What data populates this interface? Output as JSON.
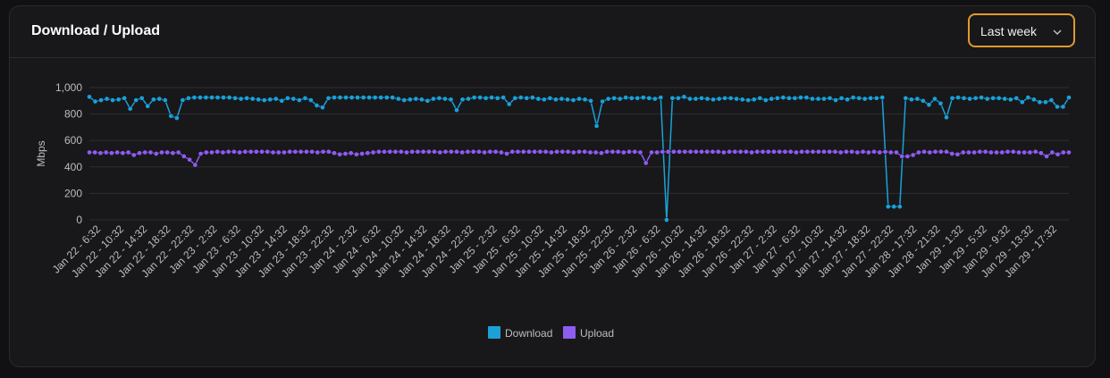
{
  "card": {
    "title": "Download / Upload",
    "range_selected": "Last week"
  },
  "colors": {
    "download": "#1ba1d8",
    "upload": "#8f5cf0",
    "accent": "#e09a2a"
  },
  "icons": {
    "range_dropdown": "chevron-down-icon"
  },
  "chart_data": {
    "type": "line",
    "title": "",
    "ylabel": "Mbps",
    "xlabel": "",
    "ylim": [
      0,
      1000
    ],
    "yticks": [
      0,
      200,
      400,
      600,
      800,
      1000
    ],
    "ytick_labels": [
      "0",
      "200",
      "400",
      "600",
      "800",
      "1,000"
    ],
    "grid": true,
    "legend_position": "bottom-center",
    "x_tick_labels": [
      "Jan 22 - 6:32",
      "Jan 22 - 10:32",
      "Jan 22 - 14:32",
      "Jan 22 - 18:32",
      "Jan 22 - 22:32",
      "Jan 23 - 2:32",
      "Jan 23 - 6:32",
      "Jan 23 - 10:32",
      "Jan 23 - 14:32",
      "Jan 23 - 18:32",
      "Jan 23 - 22:32",
      "Jan 24 - 2:32",
      "Jan 24 - 6:32",
      "Jan 24 - 10:32",
      "Jan 24 - 14:32",
      "Jan 24 - 18:32",
      "Jan 24 - 22:32",
      "Jan 25 - 2:32",
      "Jan 25 - 6:32",
      "Jan 25 - 10:32",
      "Jan 25 - 14:32",
      "Jan 25 - 18:32",
      "Jan 25 - 22:32",
      "Jan 26 - 2:32",
      "Jan 26 - 6:32",
      "Jan 26 - 10:32",
      "Jan 26 - 14:32",
      "Jan 26 - 18:32",
      "Jan 26 - 22:32",
      "Jan 27 - 2:32",
      "Jan 27 - 6:32",
      "Jan 27 - 10:32",
      "Jan 27 - 14:32",
      "Jan 27 - 18:32",
      "Jan 27 - 22:32",
      "Jan 28 - 17:32",
      "Jan 28 - 21:32",
      "Jan 29 - 1:32",
      "Jan 29 - 5:32",
      "Jan 29 - 9:32",
      "Jan 29 - 13:32",
      "Jan 29 - 17:32"
    ],
    "series": [
      {
        "name": "Download",
        "values": [
          930,
          895,
          905,
          915,
          905,
          910,
          920,
          840,
          905,
          920,
          860,
          910,
          915,
          905,
          785,
          770,
          905,
          920,
          925,
          925,
          925,
          925,
          925,
          925,
          925,
          920,
          915,
          920,
          915,
          910,
          905,
          910,
          915,
          900,
          920,
          915,
          905,
          920,
          905,
          865,
          850,
          920,
          925,
          925,
          925,
          925,
          925,
          925,
          925,
          925,
          925,
          925,
          925,
          915,
          905,
          910,
          915,
          910,
          900,
          915,
          920,
          915,
          910,
          830,
          910,
          915,
          925,
          925,
          920,
          925,
          920,
          925,
          875,
          920,
          925,
          920,
          925,
          915,
          910,
          920,
          910,
          915,
          910,
          905,
          915,
          910,
          900,
          710,
          895,
          915,
          920,
          915,
          925,
          920,
          920,
          925,
          920,
          915,
          925,
          0,
          920,
          920,
          930,
          915,
          915,
          920,
          915,
          910,
          915,
          920,
          920,
          915,
          910,
          905,
          910,
          920,
          905,
          915,
          920,
          925,
          920,
          920,
          925,
          925,
          915,
          915,
          915,
          920,
          905,
          920,
          910,
          925,
          920,
          915,
          920,
          920,
          925,
          100,
          100,
          100,
          920,
          910,
          915,
          900,
          870,
          915,
          880,
          775,
          920,
          925,
          920,
          915,
          920,
          925,
          915,
          920,
          920,
          915,
          910,
          920,
          890,
          925,
          910,
          890,
          890,
          905,
          855,
          855,
          925
        ],
        "download_note_hidden": ""
      },
      {
        "name": "Upload",
        "values": [
          510,
          510,
          505,
          510,
          505,
          510,
          505,
          510,
          490,
          505,
          510,
          510,
          500,
          510,
          510,
          505,
          510,
          480,
          455,
          415,
          500,
          510,
          510,
          515,
          510,
          515,
          515,
          510,
          515,
          515,
          515,
          515,
          515,
          510,
          510,
          510,
          515,
          515,
          515,
          515,
          515,
          510,
          515,
          515,
          505,
          495,
          500,
          505,
          495,
          500,
          505,
          510,
          515,
          515,
          515,
          515,
          515,
          510,
          515,
          515,
          515,
          515,
          515,
          510,
          515,
          515,
          515,
          510,
          515,
          515,
          515,
          510,
          515,
          515,
          510,
          500,
          515,
          515,
          515,
          515,
          515,
          515,
          515,
          510,
          515,
          515,
          515,
          510,
          515,
          515,
          510,
          510,
          505,
          515,
          515,
          515,
          510,
          515,
          515,
          510,
          430,
          510,
          510,
          515,
          515,
          515,
          515,
          515,
          515,
          515,
          515,
          515,
          515,
          515,
          510,
          515,
          515,
          515,
          515,
          510,
          515,
          515,
          515,
          515,
          515,
          515,
          515,
          510,
          515,
          515,
          515,
          515,
          515,
          515,
          515,
          510,
          515,
          515,
          510,
          515,
          510,
          515,
          510,
          515,
          510,
          510,
          480,
          480,
          490,
          510,
          515,
          510,
          515,
          515,
          515,
          500,
          495,
          510,
          510,
          510,
          515,
          515,
          510,
          510,
          510,
          515,
          515,
          510,
          510,
          510,
          515,
          505,
          480,
          510,
          495,
          510,
          510
        ]
      }
    ]
  }
}
